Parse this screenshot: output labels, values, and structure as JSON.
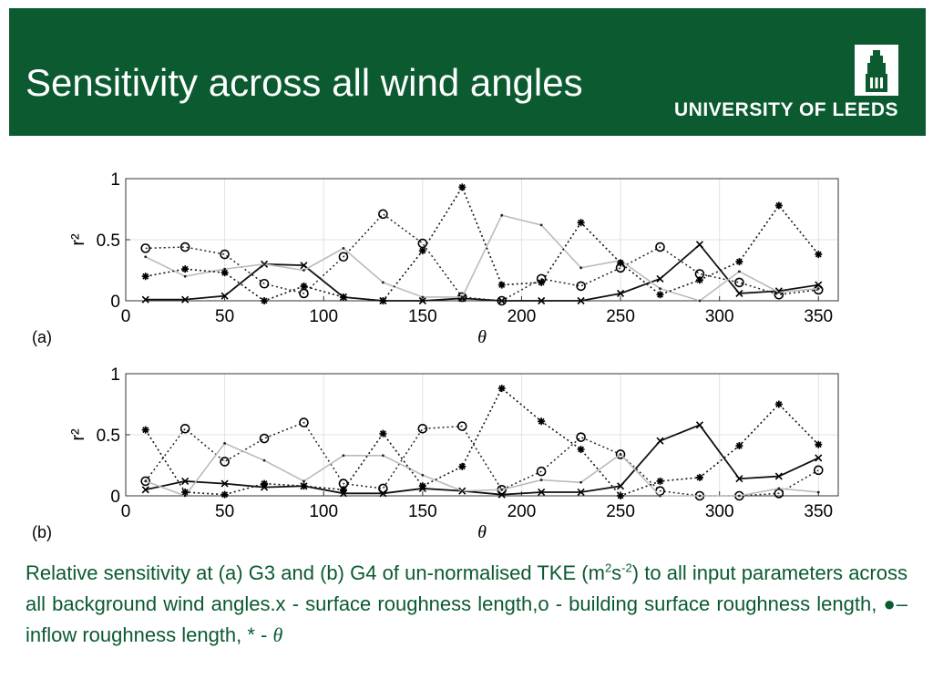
{
  "header": {
    "title": "Sensitivity across all wind angles",
    "logo_text": "UNIVERSITY OF LEEDS",
    "background": "#0b5a30"
  },
  "chart_data": [
    {
      "type": "line",
      "panel_label": "(a)",
      "xlabel": "θ",
      "ylabel": "r²",
      "xlim": [
        0,
        360
      ],
      "ylim": [
        0,
        1
      ],
      "xticks": [
        0,
        50,
        100,
        150,
        200,
        250,
        300,
        350
      ],
      "yticks": [
        0,
        0.5,
        1
      ],
      "x": [
        10,
        30,
        50,
        70,
        90,
        110,
        130,
        150,
        170,
        190,
        210,
        230,
        250,
        270,
        290,
        310,
        330,
        350
      ],
      "series": [
        {
          "marker": "x",
          "values": [
            0.01,
            0.01,
            0.04,
            0.3,
            0.29,
            0.03,
            0.0,
            0.0,
            0.02,
            0.0,
            0.0,
            0.0,
            0.06,
            0.18,
            0.46,
            0.06,
            0.08,
            0.13
          ]
        },
        {
          "marker": "o",
          "values": [
            0.43,
            0.44,
            0.38,
            0.14,
            0.06,
            0.36,
            0.71,
            0.47,
            0.03,
            0.0,
            0.18,
            0.12,
            0.27,
            0.44,
            0.22,
            0.15,
            0.05,
            0.09
          ]
        },
        {
          "marker": "dot",
          "values": [
            0.36,
            0.2,
            0.26,
            0.3,
            0.25,
            0.43,
            0.15,
            0.03,
            0.03,
            0.7,
            0.62,
            0.27,
            0.33,
            0.1,
            0.0,
            0.24,
            0.07,
            0.1
          ]
        },
        {
          "marker": "*",
          "values": [
            0.2,
            0.26,
            0.23,
            0.0,
            0.12,
            0.03,
            0.0,
            0.41,
            0.93,
            0.13,
            0.15,
            0.64,
            0.31,
            0.05,
            0.17,
            0.32,
            0.78,
            0.38
          ]
        }
      ]
    },
    {
      "type": "line",
      "panel_label": "(b)",
      "xlabel": "θ",
      "ylabel": "r²",
      "xlim": [
        0,
        360
      ],
      "ylim": [
        0,
        1
      ],
      "xticks": [
        0,
        50,
        100,
        150,
        200,
        250,
        300,
        350
      ],
      "yticks": [
        0,
        0.5,
        1
      ],
      "x": [
        10,
        30,
        50,
        70,
        90,
        110,
        130,
        150,
        170,
        190,
        210,
        230,
        250,
        270,
        290,
        310,
        330,
        350
      ],
      "series": [
        {
          "marker": "x",
          "values": [
            0.05,
            0.12,
            0.1,
            0.07,
            0.08,
            0.02,
            0.02,
            0.06,
            0.04,
            0.01,
            0.03,
            0.03,
            0.08,
            0.45,
            0.58,
            0.14,
            0.16,
            0.31
          ]
        },
        {
          "marker": "o",
          "values": [
            0.12,
            0.55,
            0.28,
            0.47,
            0.6,
            0.1,
            0.06,
            0.55,
            0.57,
            0.05,
            0.2,
            0.48,
            0.34,
            0.04,
            0.0,
            0.0,
            0.02,
            0.21
          ]
        },
        {
          "marker": "dot",
          "values": [
            0.12,
            0.0,
            0.43,
            0.29,
            0.12,
            0.33,
            0.33,
            0.17,
            0.04,
            0.05,
            0.13,
            0.11,
            0.34,
            0.0,
            0.0,
            0.0,
            0.06,
            0.03
          ]
        },
        {
          "marker": "*",
          "values": [
            0.54,
            0.03,
            0.01,
            0.1,
            0.08,
            0.05,
            0.51,
            0.08,
            0.24,
            0.88,
            0.61,
            0.38,
            0.0,
            0.12,
            0.15,
            0.41,
            0.75,
            0.42
          ]
        }
      ]
    }
  ],
  "caption": {
    "part1": "Relative sensitivity at (a) G3 and (b) G4 of un-normalised TKE (m",
    "sup1": "2",
    "part2": "s",
    "sup2": "-2",
    "part3": ") to all input parameters across all background wind angles.x - surface roughness length,o - building surface roughness length,  ●–inflow roughness length, ",
    "star": "*",
    "part4": " - ",
    "theta": "θ"
  }
}
